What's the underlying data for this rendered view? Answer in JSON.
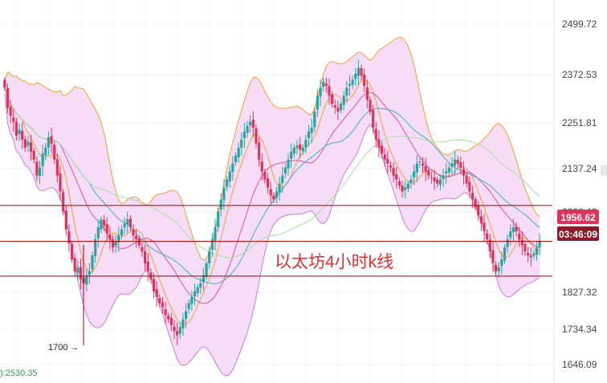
{
  "chart_data": {
    "type": "candlestick",
    "title": "",
    "annotation": "以太坊4小时k线",
    "y_axis": {
      "position": "right",
      "ylim": [
        1600,
        2560
      ],
      "tick_labels": [
        "2499.72",
        "2372.53",
        "2251.81",
        "2137.24",
        "2028.49",
        "1827.32",
        "1734.34",
        "1646.09"
      ]
    },
    "current_price": "1956.62",
    "countdown": "03:46:09",
    "low_marker": {
      "label": "1700 →",
      "value": 1700
    },
    "corner_label": "):2530.35",
    "horizontal_levels": [
      2045,
      1955,
      1868
    ],
    "grid": true,
    "colors": {
      "up": "#26a69a",
      "down": "#e0335a",
      "level_line": "#a00000",
      "band_fill": "#f4d6f6",
      "band_edge": "#f0a030",
      "price_box": "#e0335a",
      "countdown_box": "#8b1a2b",
      "ma_pink": "#e0509a",
      "ma_teal": "#3ab0c0",
      "ma_green": "#a8dca0",
      "ma_slow": "#c080e0"
    },
    "close_series": [
      2340,
      2290,
      2270,
      2255,
      2220,
      2235,
      2210,
      2190,
      2205,
      2180,
      2160,
      2120,
      2140,
      2175,
      2190,
      2215,
      2200,
      2160,
      2120,
      2080,
      2030,
      1985,
      1950,
      1910,
      1880,
      1890,
      1860,
      1850,
      1870,
      1880,
      1920,
      1960,
      1990,
      2010,
      1995,
      1975,
      1960,
      1940,
      1955,
      1970,
      1985,
      2000,
      2010,
      1990,
      1970,
      1960,
      1945,
      1930,
      1900,
      1880,
      1860,
      1830,
      1815,
      1800,
      1790,
      1770,
      1760,
      1745,
      1730,
      1720,
      1740,
      1760,
      1780,
      1800,
      1815,
      1830,
      1840,
      1850,
      1870,
      1900,
      1930,
      1960,
      1990,
      2030,
      2060,
      2090,
      2110,
      2130,
      2150,
      2170,
      2190,
      2210,
      2230,
      2245,
      2255,
      2240,
      2200,
      2160,
      2130,
      2110,
      2090,
      2070,
      2060,
      2080,
      2100,
      2120,
      2140,
      2160,
      2180,
      2190,
      2195,
      2185,
      2190,
      2210,
      2230,
      2240,
      2280,
      2320,
      2340,
      2355,
      2345,
      2320,
      2300,
      2290,
      2280,
      2300,
      2320,
      2340,
      2350,
      2360,
      2375,
      2390,
      2370,
      2345,
      2310,
      2280,
      2240,
      2210,
      2190,
      2175,
      2160,
      2150,
      2140,
      2120,
      2110,
      2095,
      2080,
      2090,
      2100,
      2110,
      2130,
      2150,
      2155,
      2145,
      2130,
      2120,
      2115,
      2105,
      2100,
      2110,
      2120,
      2130,
      2140,
      2150,
      2160,
      2150,
      2140,
      2120,
      2100,
      2080,
      2060,
      2040,
      2020,
      2000,
      1980,
      1960,
      1930,
      1900,
      1880,
      1890,
      1910,
      1940,
      1960,
      1980,
      1990,
      1980,
      1960,
      1945,
      1930,
      1920,
      1915,
      1925,
      1940,
      1957
    ]
  }
}
